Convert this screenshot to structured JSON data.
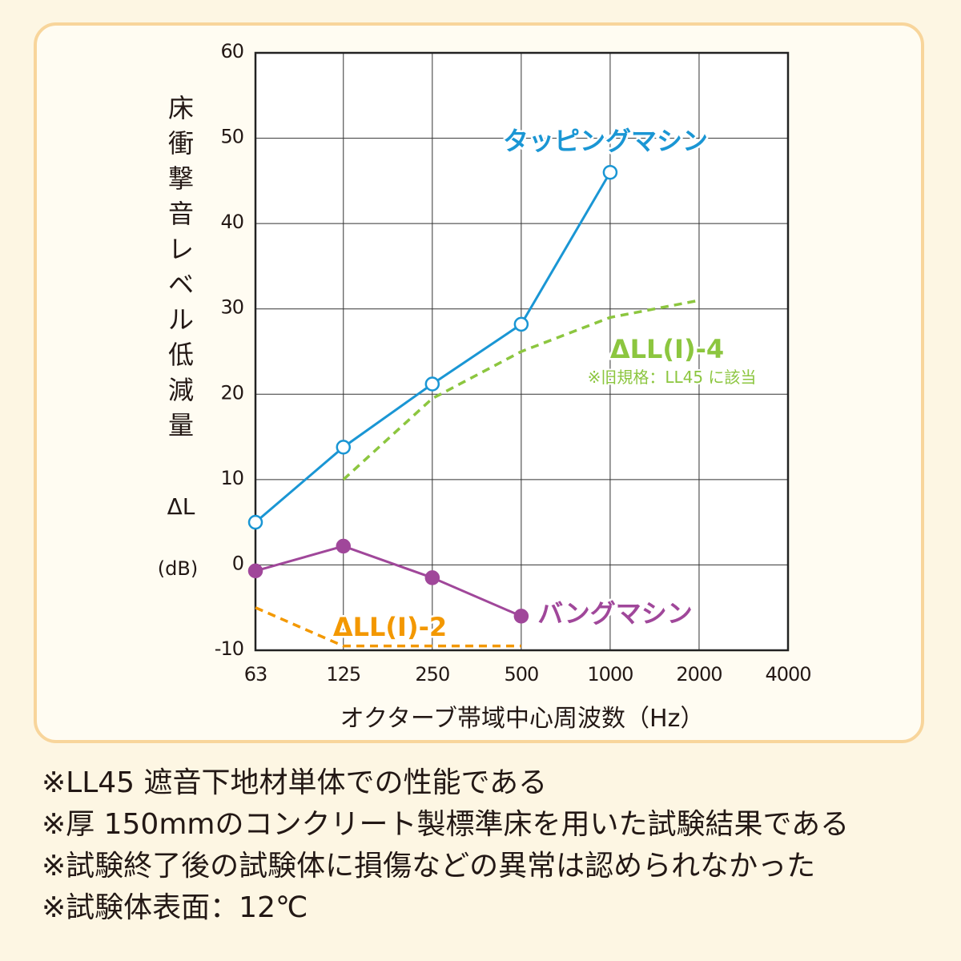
{
  "chart_data": {
    "type": "line",
    "x_scale": "log2",
    "y_label_chars": [
      "床",
      "衝",
      "撃",
      "音",
      "レ",
      "ベ",
      "ル",
      "低",
      "減",
      "量"
    ],
    "y_symbol": "ΔL",
    "y_unit": "(dB)",
    "x_label": "オクターブ帯域中心周波数（Hz）",
    "x_ticks": [
      "63",
      "125",
      "250",
      "500",
      "1000",
      "2000",
      "4000"
    ],
    "x_tick_values": [
      63,
      125,
      250,
      500,
      1000,
      2000,
      4000
    ],
    "y_ticks": [
      "60",
      "50",
      "40",
      "30",
      "20",
      "10",
      "0",
      "-10"
    ],
    "y_tick_values": [
      60,
      50,
      40,
      30,
      20,
      10,
      0,
      -10
    ],
    "xlim": [
      63,
      4000
    ],
    "ylim": [
      -10,
      60
    ],
    "grid": true,
    "series": [
      {
        "name": "タッピングマシン",
        "color": "#1a96d4",
        "marker": "open-circle",
        "line": "solid",
        "x": [
          63,
          125,
          250,
          500,
          1000
        ],
        "y": [
          5,
          13.8,
          21.2,
          28.2,
          46
        ]
      },
      {
        "name": "バングマシン",
        "color": "#a0479a",
        "marker": "filled-circle",
        "line": "solid",
        "x": [
          63,
          125,
          250,
          500
        ],
        "y": [
          -0.7,
          2.2,
          -1.5,
          -6
        ]
      },
      {
        "name": "ΔLL(Ⅰ)-4",
        "note": "※旧規格：LL45 に該当",
        "color": "#8cc63f",
        "line": "dashed",
        "x": [
          125,
          250,
          500,
          1000,
          2000
        ],
        "y": [
          10,
          19.5,
          25,
          29,
          31
        ]
      },
      {
        "name": "ΔLL(Ⅰ)-2",
        "color": "#f39800",
        "line": "dashed",
        "x": [
          63,
          125,
          250,
          500
        ],
        "y": [
          -5,
          -9.5,
          -9.5,
          -9.5
        ]
      }
    ]
  },
  "notes": [
    "※LL45 遮音下地材単体での性能である",
    "※厚 150mmのコンクリート製標準床を用いた試験結果である",
    "※試験終了後の試験体に損傷などの異常は認められなかった",
    "※試験体表面：12℃"
  ]
}
